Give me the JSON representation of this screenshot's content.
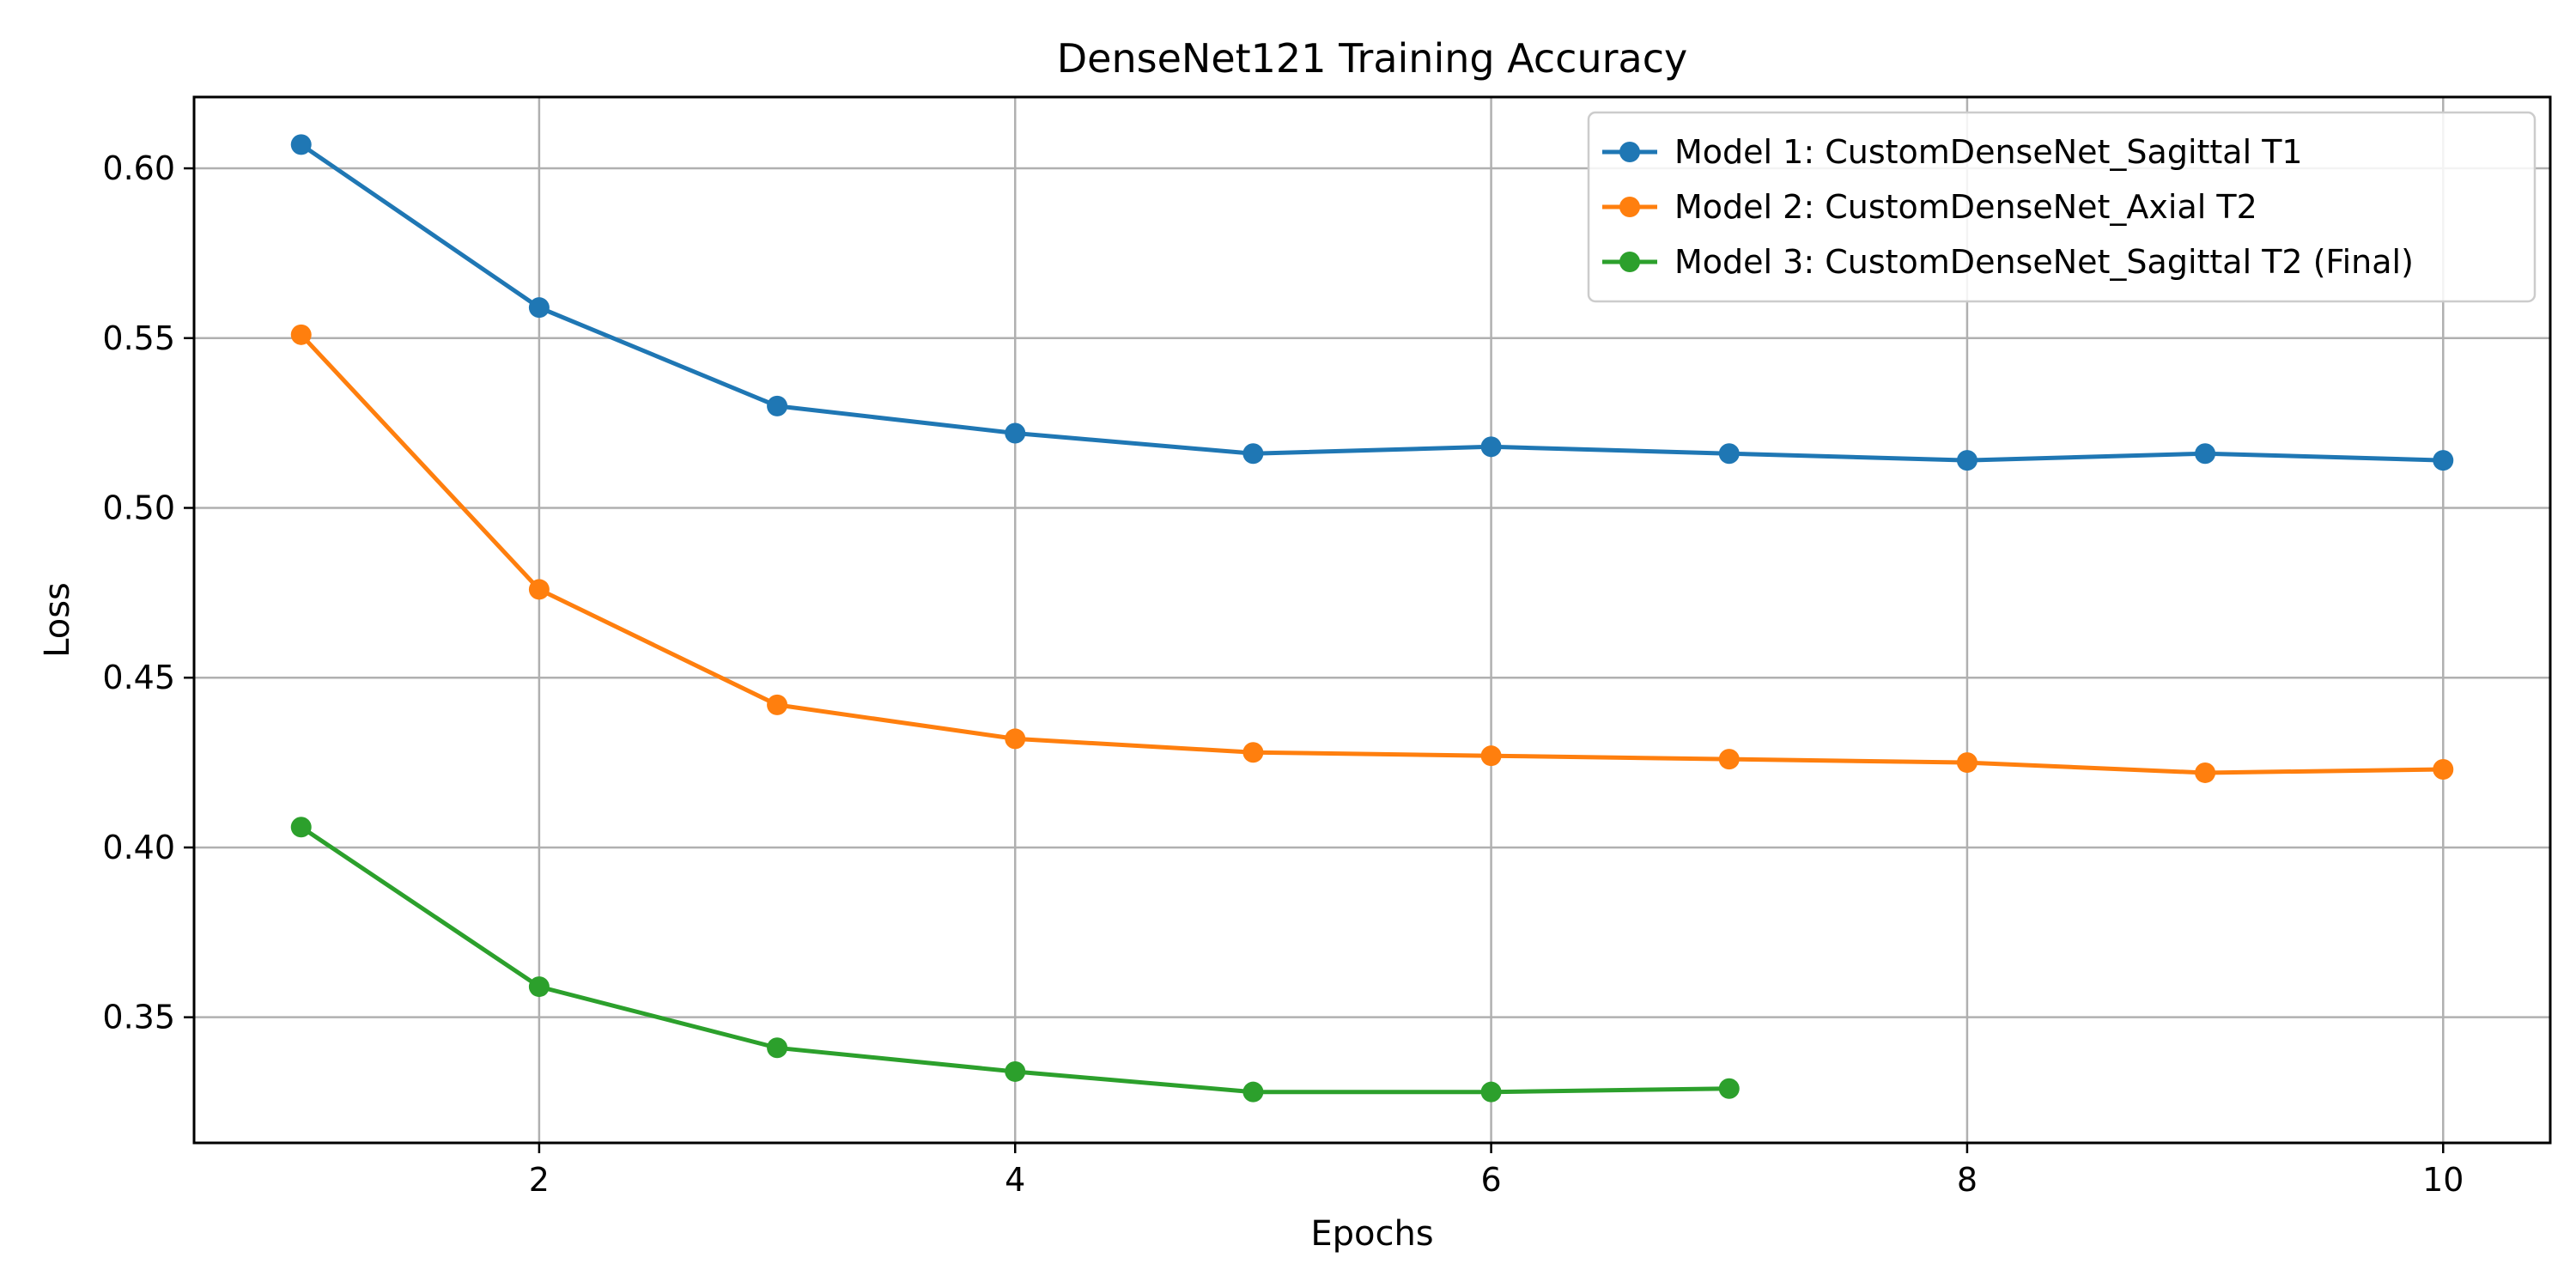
{
  "chart_data": {
    "type": "line",
    "title": "DenseNet121 Training Accuracy",
    "xlabel": "Epochs",
    "ylabel": "Loss",
    "xlim": [
      0.55,
      10.45
    ],
    "ylim": [
      0.313,
      0.621
    ],
    "x_ticks": [
      2,
      4,
      6,
      8,
      10
    ],
    "x_tick_labels": [
      "2",
      "4",
      "6",
      "8",
      "10"
    ],
    "y_ticks": [
      0.35,
      0.4,
      0.45,
      0.5,
      0.55,
      0.6
    ],
    "y_tick_labels": [
      "0.35",
      "0.40",
      "0.45",
      "0.50",
      "0.55",
      "0.60"
    ],
    "grid": true,
    "legend_position": "top-right",
    "series": [
      {
        "name": "Model 1: CustomDenseNet_Sagittal T1",
        "color": "#1f77b4",
        "x": [
          1,
          2,
          3,
          4,
          5,
          6,
          7,
          8,
          9,
          10
        ],
        "values": [
          0.607,
          0.559,
          0.53,
          0.522,
          0.516,
          0.518,
          0.516,
          0.514,
          0.516,
          0.514
        ]
      },
      {
        "name": "Model 2: CustomDenseNet_Axial T2",
        "color": "#ff7f0e",
        "x": [
          1,
          2,
          3,
          4,
          5,
          6,
          7,
          8,
          9,
          10
        ],
        "values": [
          0.551,
          0.476,
          0.442,
          0.432,
          0.428,
          0.427,
          0.426,
          0.425,
          0.422,
          0.423
        ]
      },
      {
        "name": "Model 3: CustomDenseNet_Sagittal T2 (Final)",
        "color": "#2ca02c",
        "x": [
          1,
          2,
          3,
          4,
          5,
          6,
          7
        ],
        "values": [
          0.406,
          0.359,
          0.341,
          0.334,
          0.328,
          0.328,
          0.329
        ]
      }
    ]
  }
}
